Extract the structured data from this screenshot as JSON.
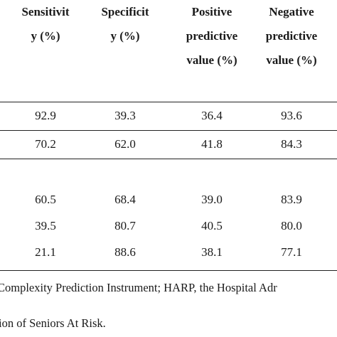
{
  "table": {
    "headers": [
      [
        "Sensitivit",
        "y (%)"
      ],
      [
        "Specificit",
        "y (%)"
      ],
      [
        "Positive",
        "predictive",
        "value (%)"
      ],
      [
        "Negative",
        "predictive",
        "value (%)"
      ]
    ],
    "group1": [
      [
        "92.9",
        "39.3",
        "36.4",
        "93.6"
      ],
      [
        "70.2",
        "62.0",
        "41.8",
        "84.3"
      ]
    ],
    "group2": [
      [
        "60.5",
        "68.4",
        "39.0",
        "83.9"
      ],
      [
        "39.5",
        "80.7",
        "40.5",
        "80.0"
      ],
      [
        "21.1",
        "88.6",
        "38.1",
        "77.1"
      ]
    ]
  },
  "footnote": {
    "line1": "Complexity Prediction Instrument; HARP, the Hospital Adr",
    "line2": "ion of Seniors At Risk."
  }
}
